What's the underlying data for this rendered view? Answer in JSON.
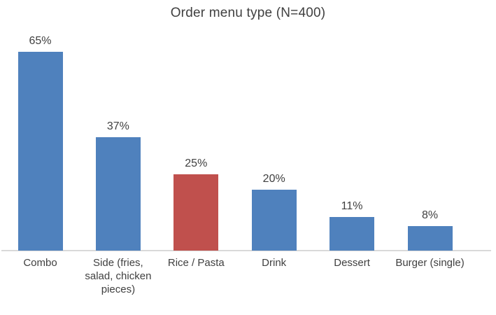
{
  "page": {
    "background": "#ffffff"
  },
  "chart_data": {
    "type": "bar",
    "title": "Order menu type (N=400)",
    "categories": [
      "Combo",
      "Side (fries, salad, chicken pieces)",
      "Rice / Pasta",
      "Drink",
      "Dessert",
      "Burger (single)"
    ],
    "values": [
      65,
      37,
      25,
      20,
      11,
      8
    ],
    "value_labels": [
      "65%",
      "37%",
      "25%",
      "20%",
      "11%",
      "8%"
    ],
    "unit": "percent",
    "highlight_index": 2,
    "colors": {
      "bar": "#4F81BD",
      "highlight": "#C0504D",
      "axis_line": "#D9D9D9",
      "text": "#404040"
    },
    "ylim": [
      0,
      70
    ],
    "xlabel": "",
    "ylabel": "",
    "grid": false,
    "legend": false,
    "y_axis_visible": false,
    "data_labels_visible": true
  }
}
